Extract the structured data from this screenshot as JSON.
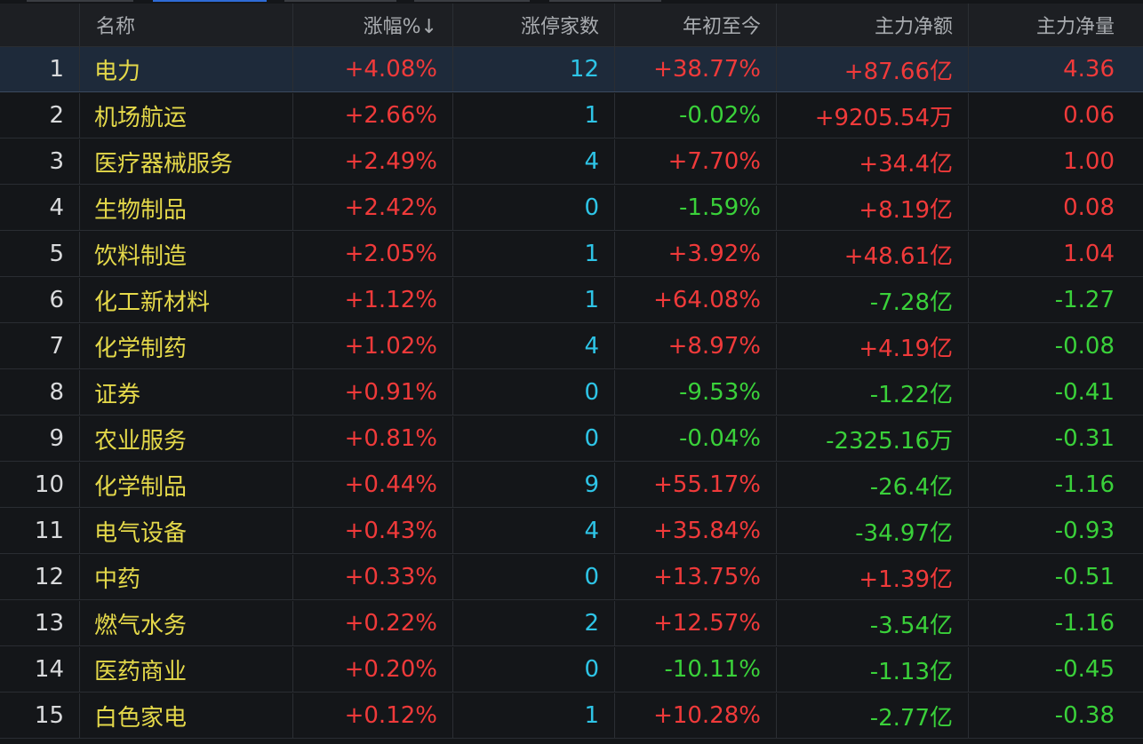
{
  "columns": {
    "name": "名称",
    "change": "涨幅%↓",
    "limit_up": "涨停家数",
    "ytd": "年初至今",
    "net_amount": "主力净额",
    "net_volume": "主力净量"
  },
  "colors": {
    "up": "#f03a3a",
    "down": "#3ad13a",
    "name": "#e5d94a",
    "count": "#2ec4e6",
    "selected_row_bg": "#1e2a3a"
  },
  "rows": [
    {
      "idx": "1",
      "name": "电力",
      "change": "+4.08%",
      "change_dir": "up",
      "limit_up": "12",
      "ytd": "+38.77%",
      "ytd_dir": "up",
      "net_amount": "+87.66亿",
      "amt_dir": "up",
      "net_volume": "4.36",
      "vol_dir": "up",
      "selected": true
    },
    {
      "idx": "2",
      "name": "机场航运",
      "change": "+2.66%",
      "change_dir": "up",
      "limit_up": "1",
      "ytd": "-0.02%",
      "ytd_dir": "down",
      "net_amount": "+9205.54万",
      "amt_dir": "up",
      "net_volume": "0.06",
      "vol_dir": "up"
    },
    {
      "idx": "3",
      "name": "医疗器械服务",
      "change": "+2.49%",
      "change_dir": "up",
      "limit_up": "4",
      "ytd": "+7.70%",
      "ytd_dir": "up",
      "net_amount": "+34.4亿",
      "amt_dir": "up",
      "net_volume": "1.00",
      "vol_dir": "up"
    },
    {
      "idx": "4",
      "name": "生物制品",
      "change": "+2.42%",
      "change_dir": "up",
      "limit_up": "0",
      "ytd": "-1.59%",
      "ytd_dir": "down",
      "net_amount": "+8.19亿",
      "amt_dir": "up",
      "net_volume": "0.08",
      "vol_dir": "up"
    },
    {
      "idx": "5",
      "name": "饮料制造",
      "change": "+2.05%",
      "change_dir": "up",
      "limit_up": "1",
      "ytd": "+3.92%",
      "ytd_dir": "up",
      "net_amount": "+48.61亿",
      "amt_dir": "up",
      "net_volume": "1.04",
      "vol_dir": "up"
    },
    {
      "idx": "6",
      "name": "化工新材料",
      "change": "+1.12%",
      "change_dir": "up",
      "limit_up": "1",
      "ytd": "+64.08%",
      "ytd_dir": "up",
      "net_amount": "-7.28亿",
      "amt_dir": "down",
      "net_volume": "-1.27",
      "vol_dir": "down"
    },
    {
      "idx": "7",
      "name": "化学制药",
      "change": "+1.02%",
      "change_dir": "up",
      "limit_up": "4",
      "ytd": "+8.97%",
      "ytd_dir": "up",
      "net_amount": "+4.19亿",
      "amt_dir": "up",
      "net_volume": "-0.08",
      "vol_dir": "down"
    },
    {
      "idx": "8",
      "name": "证券",
      "change": "+0.91%",
      "change_dir": "up",
      "limit_up": "0",
      "ytd": "-9.53%",
      "ytd_dir": "down",
      "net_amount": "-1.22亿",
      "amt_dir": "down",
      "net_volume": "-0.41",
      "vol_dir": "down"
    },
    {
      "idx": "9",
      "name": "农业服务",
      "change": "+0.81%",
      "change_dir": "up",
      "limit_up": "0",
      "ytd": "-0.04%",
      "ytd_dir": "down",
      "net_amount": "-2325.16万",
      "amt_dir": "down",
      "net_volume": "-0.31",
      "vol_dir": "down"
    },
    {
      "idx": "10",
      "name": "化学制品",
      "change": "+0.44%",
      "change_dir": "up",
      "limit_up": "9",
      "ytd": "+55.17%",
      "ytd_dir": "up",
      "net_amount": "-26.4亿",
      "amt_dir": "down",
      "net_volume": "-1.16",
      "vol_dir": "down"
    },
    {
      "idx": "11",
      "name": "电气设备",
      "change": "+0.43%",
      "change_dir": "up",
      "limit_up": "4",
      "ytd": "+35.84%",
      "ytd_dir": "up",
      "net_amount": "-34.97亿",
      "amt_dir": "down",
      "net_volume": "-0.93",
      "vol_dir": "down"
    },
    {
      "idx": "12",
      "name": "中药",
      "change": "+0.33%",
      "change_dir": "up",
      "limit_up": "0",
      "ytd": "+13.75%",
      "ytd_dir": "up",
      "net_amount": "+1.39亿",
      "amt_dir": "up",
      "net_volume": "-0.51",
      "vol_dir": "down"
    },
    {
      "idx": "13",
      "name": "燃气水务",
      "change": "+0.22%",
      "change_dir": "up",
      "limit_up": "2",
      "ytd": "+12.57%",
      "ytd_dir": "up",
      "net_amount": "-3.54亿",
      "amt_dir": "down",
      "net_volume": "-1.16",
      "vol_dir": "down"
    },
    {
      "idx": "14",
      "name": "医药商业",
      "change": "+0.20%",
      "change_dir": "up",
      "limit_up": "0",
      "ytd": "-10.11%",
      "ytd_dir": "down",
      "net_amount": "-1.13亿",
      "amt_dir": "down",
      "net_volume": "-0.45",
      "vol_dir": "down"
    },
    {
      "idx": "15",
      "name": "白色家电",
      "change": "+0.12%",
      "change_dir": "up",
      "limit_up": "1",
      "ytd": "+10.28%",
      "ytd_dir": "up",
      "net_amount": "-2.77亿",
      "amt_dir": "down",
      "net_volume": "-0.38",
      "vol_dir": "down"
    }
  ]
}
